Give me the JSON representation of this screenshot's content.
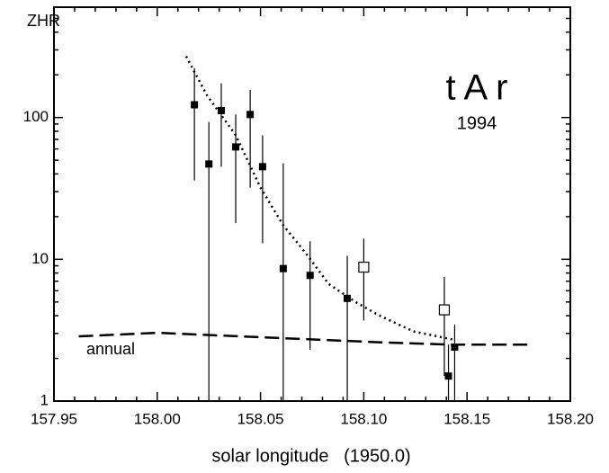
{
  "chart_data": {
    "type": "scatter",
    "y_label": "ZHR",
    "x_label": "solar longitude   (1950.0)",
    "annotations": {
      "shower": "t A r",
      "year": "1994",
      "annual": "annual"
    },
    "log_y": true,
    "xlim": [
      157.95,
      158.2
    ],
    "ylim": [
      1,
      600
    ],
    "xticks": [
      {
        "value": 157.95,
        "label": "157.95"
      },
      {
        "value": 158.0,
        "label": "158.00"
      },
      {
        "value": 158.05,
        "label": "158.05"
      },
      {
        "value": 158.1,
        "label": "158.10"
      },
      {
        "value": 158.15,
        "label": "158.15"
      },
      {
        "value": 158.2,
        "label": "158.20"
      }
    ],
    "xminorticks": [
      157.96,
      157.97,
      157.98,
      157.99,
      158.01,
      158.02,
      158.03,
      158.04,
      158.06,
      158.07,
      158.08,
      158.09,
      158.11,
      158.12,
      158.13,
      158.14,
      158.16,
      158.17,
      158.18,
      158.19
    ],
    "yticks": [
      1,
      10,
      100
    ],
    "yminorticks": [
      2,
      3,
      4,
      5,
      6,
      7,
      8,
      9,
      20,
      30,
      40,
      50,
      60,
      70,
      80,
      90,
      200,
      300,
      400,
      500
    ],
    "series": [
      {
        "marker": "filled",
        "color": "#000000",
        "x": [
          158.018,
          158.025,
          158.031,
          158.038,
          158.045,
          158.051,
          158.061,
          158.074,
          158.092,
          158.141,
          158.144
        ],
        "values": [
          123,
          47,
          112,
          62,
          105,
          45,
          8.6,
          7.7,
          5.3,
          1.5,
          2.4
        ],
        "lower": [
          36,
          1,
          45,
          18,
          32,
          13,
          1,
          2.3,
          1,
          1,
          1
        ],
        "upper": [
          223,
          93,
          174,
          105,
          157,
          75,
          47.5,
          13.4,
          10.6,
          2.5,
          3.45
        ]
      },
      {
        "marker": "open",
        "color": "#000000",
        "x": [
          158.1,
          158.139
        ],
        "values": [
          8.8,
          4.4
        ],
        "lower": [
          3.7,
          1.5
        ],
        "upper": [
          14,
          7.5
        ]
      }
    ],
    "curves": [
      {
        "style": "dotted",
        "color": "#000000",
        "x": [
          158.014,
          158.024,
          158.038,
          158.05,
          158.061,
          158.072,
          158.083,
          158.096,
          158.107,
          158.124,
          158.144
        ],
        "values": [
          270,
          144,
          75,
          32,
          17.4,
          11,
          6.7,
          5.0,
          4.05,
          3.1,
          2.7
        ]
      },
      {
        "style": "dashed",
        "color": "#000000",
        "x": [
          157.962,
          158.0,
          158.055,
          158.107,
          158.142,
          158.181
        ],
        "values": [
          2.86,
          3.03,
          2.8,
          2.6,
          2.5,
          2.5
        ]
      }
    ]
  }
}
